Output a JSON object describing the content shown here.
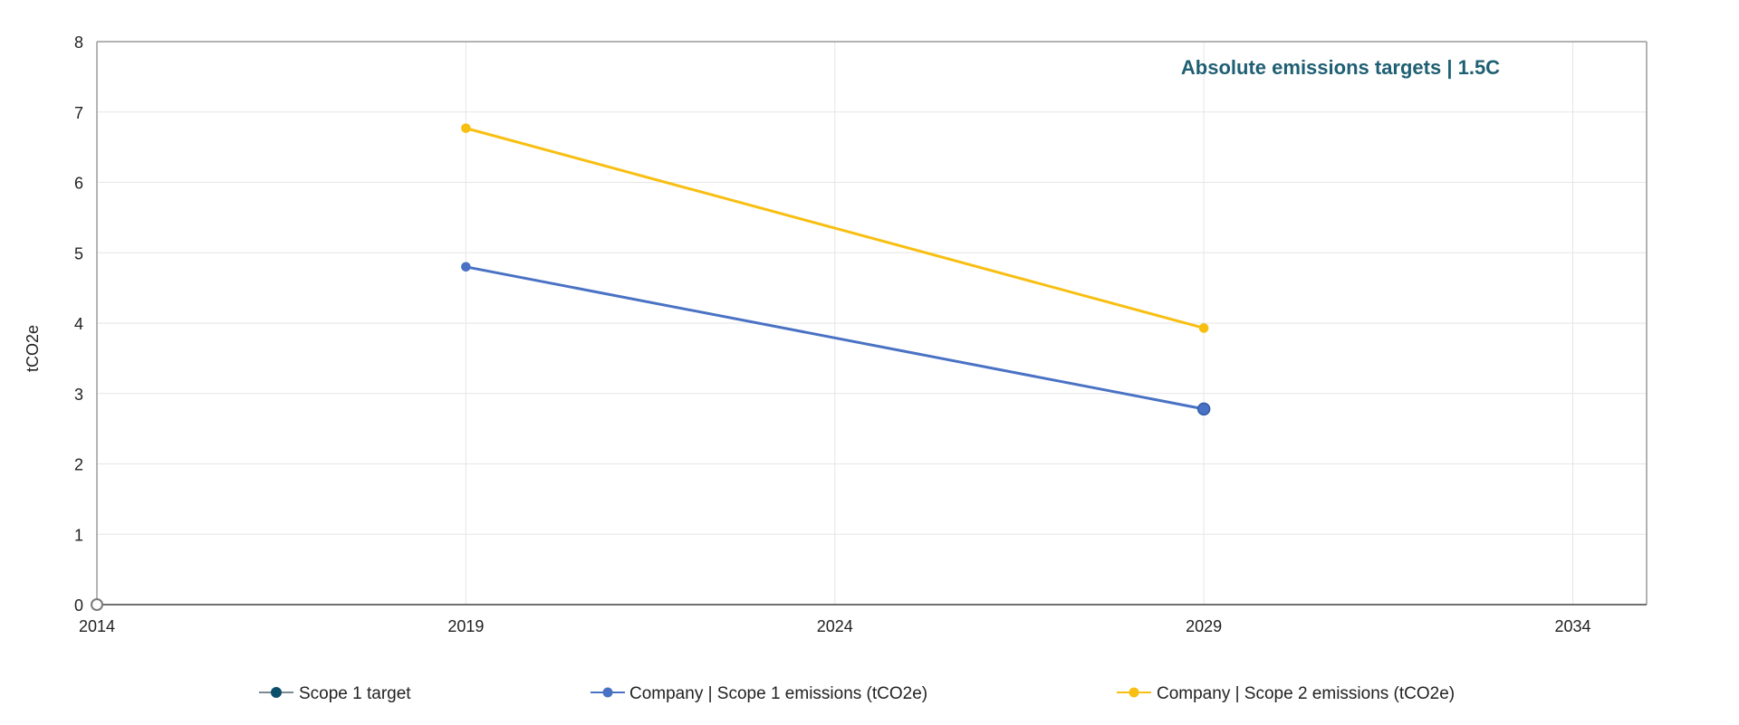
{
  "chart_data": {
    "type": "line",
    "title": "Absolute emissions targets | 1.5C",
    "xlabel": "",
    "ylabel": "tCO2e",
    "xlim": [
      2014,
      2035
    ],
    "ylim": [
      0,
      8
    ],
    "x_ticks": [
      2014,
      2019,
      2024,
      2029,
      2034
    ],
    "y_ticks": [
      0,
      1,
      2,
      3,
      4,
      5,
      6,
      7,
      8
    ],
    "grid": true,
    "legend_position": "bottom",
    "series": [
      {
        "name": "Scope 1 target",
        "color": "#0b4f6c",
        "points": [
          {
            "x": 2029,
            "y": 2.78
          }
        ]
      },
      {
        "name": "Company | Scope 1 emissions (tCO2e)",
        "color": "#4a72c4",
        "points": [
          {
            "x": 2019,
            "y": 4.8
          },
          {
            "x": 2029,
            "y": 2.78
          }
        ]
      },
      {
        "name": "Company | Scope 2 emissions (tCO2e)",
        "color": "#f8bf12",
        "points": [
          {
            "x": 2019,
            "y": 6.77
          },
          {
            "x": 2029,
            "y": 3.93
          }
        ]
      }
    ],
    "colors": {
      "title": "#1f5f73",
      "grid": "#e6e6e6",
      "axis": "#9a9a9a"
    }
  }
}
